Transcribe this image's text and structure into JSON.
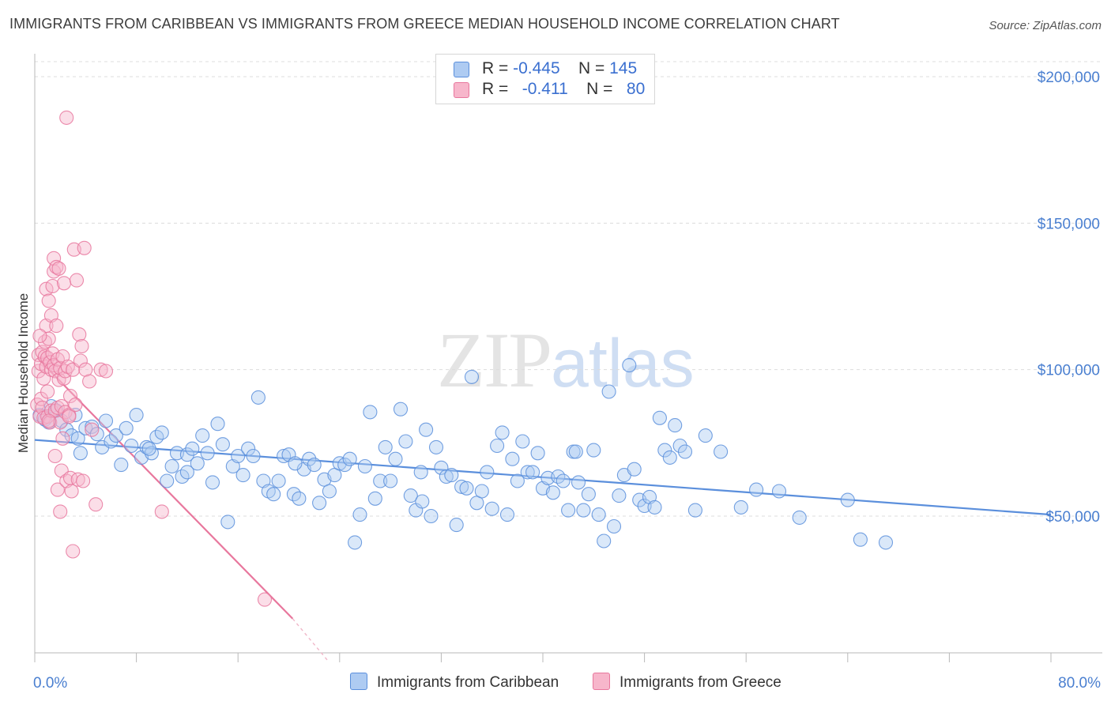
{
  "title": "IMMIGRANTS FROM CARIBBEAN VS IMMIGRANTS FROM GREECE MEDIAN HOUSEHOLD INCOME CORRELATION CHART",
  "source": "Source: ZipAtlas.com",
  "watermark": {
    "zip": "ZIP",
    "atlas": "atlas"
  },
  "legend": [
    {
      "r_label": "R =",
      "r_value": "-0.445",
      "n_label": "N =",
      "n_value": "145",
      "color": "#aecbf2"
    },
    {
      "r_label": "R =",
      "r_value": "-0.411",
      "n_label": "N =",
      "n_value": "80",
      "color": "#f7b6cb"
    }
  ],
  "bottom_legend": [
    {
      "label": "Immigrants from Caribbean",
      "color": "#aecbf2"
    },
    {
      "label": "Immigrants from Greece",
      "color": "#f7b6cb"
    }
  ],
  "chart_data": {
    "type": "scatter",
    "title": "IMMIGRANTS FROM CARIBBEAN VS IMMIGRANTS FROM GREECE MEDIAN HOUSEHOLD INCOME CORRELATION CHART",
    "xlabel": "",
    "ylabel": "Median Household Income",
    "xlim": [
      0,
      80
    ],
    "ylim": [
      0,
      210000
    ],
    "x_tick_labels": [
      "0.0%",
      "80.0%"
    ],
    "y_ticks": [
      50000,
      100000,
      150000,
      200000
    ],
    "y_tick_labels": [
      "$50,000",
      "$100,000",
      "$150,000",
      "$200,000"
    ],
    "grid": true,
    "series": [
      {
        "name": "Immigrants from Caribbean",
        "color": "#5b8fdc",
        "trend": {
          "x1": 0,
          "y1": 76000,
          "x2": 80,
          "y2": 50500
        },
        "points": [
          [
            0.4,
            84500
          ],
          [
            0.8,
            83000
          ],
          [
            1.1,
            82000
          ],
          [
            1.3,
            87500
          ],
          [
            1.7,
            86000
          ],
          [
            2.1,
            82500
          ],
          [
            2.5,
            79500
          ],
          [
            2.9,
            77500
          ],
          [
            3.2,
            84500
          ],
          [
            3.4,
            76500
          ],
          [
            3.6,
            71500
          ],
          [
            4.0,
            80000
          ],
          [
            4.5,
            80500
          ],
          [
            4.9,
            78000
          ],
          [
            5.3,
            73500
          ],
          [
            5.6,
            82500
          ],
          [
            6.0,
            75500
          ],
          [
            6.4,
            77500
          ],
          [
            6.8,
            67500
          ],
          [
            7.2,
            80000
          ],
          [
            7.6,
            74000
          ],
          [
            8.0,
            84500
          ],
          [
            8.4,
            70000
          ],
          [
            8.8,
            73500
          ],
          [
            9.2,
            71500
          ],
          [
            9.6,
            77000
          ],
          [
            10.0,
            78500
          ],
          [
            10.4,
            62000
          ],
          [
            10.8,
            67000
          ],
          [
            11.2,
            71500
          ],
          [
            11.6,
            63500
          ],
          [
            12.0,
            71000
          ],
          [
            12.4,
            73000
          ],
          [
            12.8,
            68000
          ],
          [
            13.2,
            77500
          ],
          [
            13.6,
            71500
          ],
          [
            14.0,
            61500
          ],
          [
            14.4,
            81500
          ],
          [
            14.8,
            74500
          ],
          [
            15.2,
            48000
          ],
          [
            15.6,
            67000
          ],
          [
            16.0,
            70500
          ],
          [
            16.4,
            64000
          ],
          [
            16.8,
            73000
          ],
          [
            17.2,
            70500
          ],
          [
            17.6,
            90500
          ],
          [
            18.0,
            62000
          ],
          [
            18.4,
            58500
          ],
          [
            18.8,
            57500
          ],
          [
            19.2,
            62000
          ],
          [
            19.6,
            70500
          ],
          [
            20.0,
            71000
          ],
          [
            20.4,
            57500
          ],
          [
            20.8,
            56000
          ],
          [
            21.2,
            66000
          ],
          [
            21.6,
            69500
          ],
          [
            22.0,
            67500
          ],
          [
            22.4,
            54500
          ],
          [
            22.8,
            62500
          ],
          [
            23.2,
            58500
          ],
          [
            23.6,
            64000
          ],
          [
            24.0,
            68000
          ],
          [
            24.4,
            67500
          ],
          [
            24.8,
            69500
          ],
          [
            25.2,
            41000
          ],
          [
            25.6,
            50500
          ],
          [
            26.0,
            67000
          ],
          [
            26.4,
            85500
          ],
          [
            26.8,
            56000
          ],
          [
            27.2,
            62000
          ],
          [
            27.6,
            73500
          ],
          [
            28.0,
            62000
          ],
          [
            28.4,
            69500
          ],
          [
            28.8,
            86500
          ],
          [
            29.2,
            75500
          ],
          [
            29.6,
            57000
          ],
          [
            30.0,
            52000
          ],
          [
            30.4,
            65000
          ],
          [
            30.8,
            79500
          ],
          [
            31.2,
            50000
          ],
          [
            31.6,
            73500
          ],
          [
            32.0,
            66500
          ],
          [
            32.4,
            63500
          ],
          [
            32.8,
            64000
          ],
          [
            33.2,
            47000
          ],
          [
            33.6,
            60000
          ],
          [
            34.0,
            59500
          ],
          [
            34.4,
            97500
          ],
          [
            34.8,
            54500
          ],
          [
            35.2,
            58500
          ],
          [
            35.6,
            65000
          ],
          [
            36.0,
            52500
          ],
          [
            36.4,
            74000
          ],
          [
            36.8,
            78500
          ],
          [
            37.2,
            50500
          ],
          [
            37.6,
            69500
          ],
          [
            38.0,
            62000
          ],
          [
            38.4,
            75500
          ],
          [
            38.8,
            65000
          ],
          [
            39.2,
            65000
          ],
          [
            39.6,
            71500
          ],
          [
            40.0,
            59500
          ],
          [
            40.4,
            63000
          ],
          [
            40.8,
            58000
          ],
          [
            41.2,
            63500
          ],
          [
            41.6,
            62000
          ],
          [
            42.0,
            52000
          ],
          [
            42.4,
            72000
          ],
          [
            42.8,
            61500
          ],
          [
            43.2,
            52000
          ],
          [
            43.6,
            57500
          ],
          [
            44.0,
            72500
          ],
          [
            44.4,
            50500
          ],
          [
            44.8,
            41500
          ],
          [
            45.2,
            92500
          ],
          [
            45.6,
            46500
          ],
          [
            46.0,
            57000
          ],
          [
            46.4,
            64000
          ],
          [
            46.8,
            101500
          ],
          [
            47.2,
            66000
          ],
          [
            47.6,
            55500
          ],
          [
            48.0,
            53500
          ],
          [
            48.4,
            56500
          ],
          [
            48.8,
            53000
          ],
          [
            49.2,
            83500
          ],
          [
            49.6,
            72500
          ],
          [
            50.0,
            70000
          ],
          [
            50.4,
            81000
          ],
          [
            50.8,
            74000
          ],
          [
            51.2,
            72000
          ],
          [
            52.0,
            52000
          ],
          [
            52.8,
            77500
          ],
          [
            54.0,
            72000
          ],
          [
            55.6,
            53000
          ],
          [
            56.8,
            59000
          ],
          [
            58.6,
            58500
          ],
          [
            60.2,
            49500
          ],
          [
            64.0,
            55500
          ],
          [
            65.0,
            42000
          ],
          [
            67.0,
            41000
          ],
          [
            42.6,
            72000
          ],
          [
            30.5,
            55000
          ],
          [
            20.5,
            68000
          ],
          [
            12.0,
            65000
          ],
          [
            9.0,
            73000
          ]
        ]
      },
      {
        "name": "Immigrants from Greece",
        "color": "#e8779d",
        "trend": {
          "x1": 0.2,
          "y1": 104000,
          "x2": 20.3,
          "y2": 15000
        },
        "trend_dashed_to": {
          "x": 23.1,
          "y": 500
        },
        "points": [
          [
            0.2,
            88000
          ],
          [
            0.3,
            105000
          ],
          [
            0.3,
            99500
          ],
          [
            0.4,
            84000
          ],
          [
            0.5,
            102000
          ],
          [
            0.5,
            90000
          ],
          [
            0.6,
            106000
          ],
          [
            0.6,
            87000
          ],
          [
            0.7,
            97000
          ],
          [
            0.7,
            83500
          ],
          [
            0.8,
            104500
          ],
          [
            0.8,
            109500
          ],
          [
            0.9,
            101000
          ],
          [
            0.9,
            115000
          ],
          [
            0.9,
            127500
          ],
          [
            1.0,
            84000
          ],
          [
            1.0,
            104000
          ],
          [
            1.0,
            92500
          ],
          [
            1.1,
            123500
          ],
          [
            1.1,
            110500
          ],
          [
            1.2,
            82000
          ],
          [
            1.2,
            102500
          ],
          [
            1.3,
            86000
          ],
          [
            1.3,
            100000
          ],
          [
            1.3,
            118500
          ],
          [
            1.4,
            105500
          ],
          [
            1.4,
            128500
          ],
          [
            1.5,
            133500
          ],
          [
            1.5,
            138000
          ],
          [
            1.5,
            101500
          ],
          [
            1.6,
            86000
          ],
          [
            1.6,
            99500
          ],
          [
            1.6,
            70500
          ],
          [
            1.7,
            115000
          ],
          [
            1.7,
            135000
          ],
          [
            1.8,
            103500
          ],
          [
            1.8,
            87000
          ],
          [
            1.8,
            59000
          ],
          [
            1.9,
            96500
          ],
          [
            1.9,
            134500
          ],
          [
            2.0,
            51500
          ],
          [
            2.0,
            82000
          ],
          [
            2.0,
            100500
          ],
          [
            2.1,
            65500
          ],
          [
            2.1,
            87500
          ],
          [
            2.2,
            104500
          ],
          [
            2.2,
            76500
          ],
          [
            2.3,
            129500
          ],
          [
            2.3,
            97000
          ],
          [
            2.4,
            85500
          ],
          [
            2.4,
            99500
          ],
          [
            2.5,
            62000
          ],
          [
            2.5,
            186000
          ],
          [
            2.6,
            101000
          ],
          [
            2.7,
            84500
          ],
          [
            2.8,
            91000
          ],
          [
            2.8,
            63000
          ],
          [
            2.9,
            58500
          ],
          [
            3.0,
            100000
          ],
          [
            3.0,
            38000
          ],
          [
            3.1,
            141000
          ],
          [
            3.2,
            88000
          ],
          [
            3.3,
            130500
          ],
          [
            3.4,
            62500
          ],
          [
            3.5,
            112000
          ],
          [
            3.6,
            103000
          ],
          [
            3.7,
            108000
          ],
          [
            3.8,
            62000
          ],
          [
            3.9,
            141500
          ],
          [
            4.0,
            100000
          ],
          [
            4.3,
            96000
          ],
          [
            4.5,
            79500
          ],
          [
            4.8,
            54000
          ],
          [
            5.2,
            100000
          ],
          [
            5.6,
            99500
          ],
          [
            10.0,
            51500
          ],
          [
            18.1,
            21500
          ],
          [
            1.1,
            82500
          ],
          [
            0.4,
            111500
          ],
          [
            2.7,
            84000
          ]
        ]
      }
    ]
  }
}
